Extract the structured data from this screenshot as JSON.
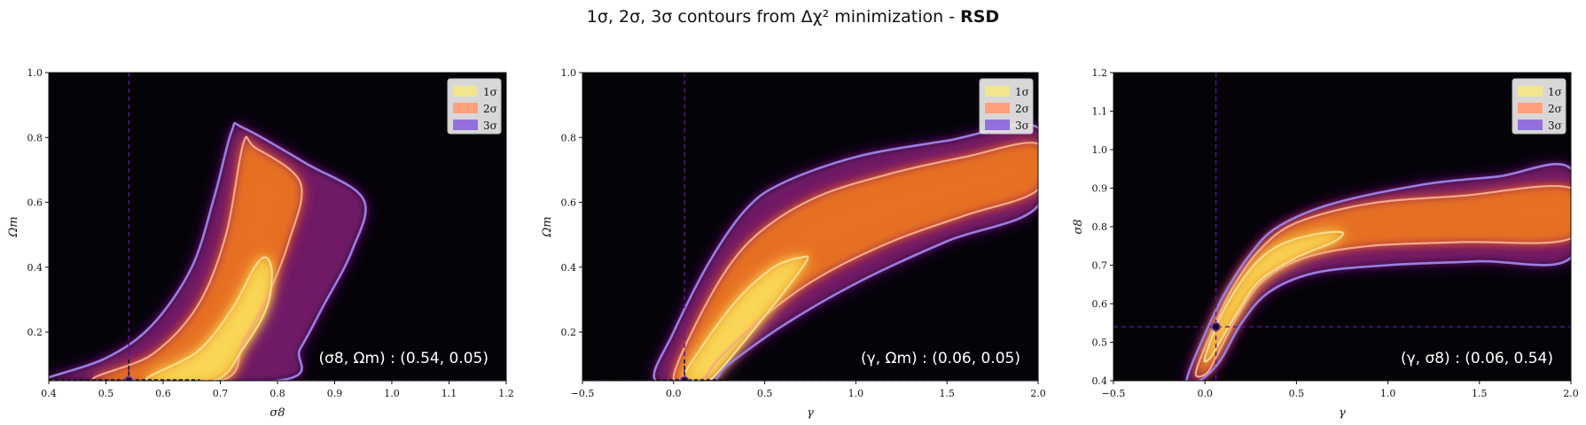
{
  "title": {
    "prefix": "1σ, 2σ, 3σ contours from Δχ² minimization - ",
    "bold": "RSD"
  },
  "legend": [
    {
      "label": "1σ",
      "color": "#f0e68c"
    },
    {
      "label": "2σ",
      "color": "#ffa07a"
    },
    {
      "label": "3σ",
      "color": "#9370db"
    }
  ],
  "colors": {
    "background": "#050308",
    "c1": "#f4dc8a",
    "c2": "#f4a989",
    "c3": "#9a7ee0",
    "crosshair": "#5a1a8c"
  },
  "chart_data": [
    {
      "type": "heatmap",
      "xlabel": "σ8",
      "ylabel": "Ωm",
      "xlim": [
        0.4,
        1.2
      ],
      "ylim": [
        0.05,
        1.0
      ],
      "xticks": [
        "0.4",
        "0.5",
        "0.6",
        "0.7",
        "0.8",
        "0.9",
        "1.0",
        "1.1",
        "1.2"
      ],
      "yticks": [
        "0.2",
        "0.4",
        "0.6",
        "0.8",
        "1.0"
      ],
      "best_fit": {
        "x": 0.54,
        "y": 0.05
      },
      "annotation": "(σ8, Ωm) : (0.54, 0.05)",
      "legend_position": "top-right",
      "contours": {
        "3": [
          [
            0.4,
            0.05
          ],
          [
            0.4,
            0.06
          ],
          [
            0.5,
            0.12
          ],
          [
            0.58,
            0.22
          ],
          [
            0.65,
            0.4
          ],
          [
            0.69,
            0.62
          ],
          [
            0.72,
            0.82
          ],
          [
            0.74,
            0.83
          ],
          [
            0.85,
            0.72
          ],
          [
            0.95,
            0.61
          ],
          [
            0.93,
            0.45
          ],
          [
            0.88,
            0.28
          ],
          [
            0.84,
            0.15
          ],
          [
            0.8,
            0.05
          ]
        ],
        "2": [
          [
            0.48,
            0.05
          ],
          [
            0.58,
            0.13
          ],
          [
            0.66,
            0.28
          ],
          [
            0.71,
            0.5
          ],
          [
            0.74,
            0.78
          ],
          [
            0.76,
            0.77
          ],
          [
            0.84,
            0.66
          ],
          [
            0.82,
            0.48
          ],
          [
            0.78,
            0.3
          ],
          [
            0.74,
            0.17
          ],
          [
            0.7,
            0.05
          ]
        ],
        "1": [
          [
            0.57,
            0.05
          ],
          [
            0.66,
            0.14
          ],
          [
            0.72,
            0.27
          ],
          [
            0.76,
            0.4
          ],
          [
            0.78,
            0.43
          ],
          [
            0.79,
            0.38
          ],
          [
            0.78,
            0.27
          ],
          [
            0.74,
            0.15
          ],
          [
            0.69,
            0.05
          ]
        ]
      }
    },
    {
      "type": "heatmap",
      "xlabel": "γ",
      "ylabel": "Ωm",
      "xlim": [
        -0.5,
        2.0
      ],
      "ylim": [
        0.05,
        1.0
      ],
      "xticks": [
        "−0.5",
        "0.0",
        "0.5",
        "1.0",
        "1.5",
        "2.0"
      ],
      "yticks": [
        "0.2",
        "0.4",
        "0.6",
        "0.8",
        "1.0"
      ],
      "best_fit": {
        "x": 0.06,
        "y": 0.05
      },
      "annotation": "(γ, Ωm) : (0.06, 0.05)",
      "legend_position": "top-right",
      "contours": {
        "3": [
          [
            -0.1,
            0.05
          ],
          [
            0.0,
            0.2
          ],
          [
            0.2,
            0.42
          ],
          [
            0.4,
            0.58
          ],
          [
            0.6,
            0.66
          ],
          [
            1.0,
            0.74
          ],
          [
            1.5,
            0.79
          ],
          [
            2.0,
            0.83
          ],
          [
            2.0,
            0.59
          ],
          [
            1.5,
            0.48
          ],
          [
            1.0,
            0.35
          ],
          [
            0.6,
            0.22
          ],
          [
            0.3,
            0.1
          ],
          [
            0.2,
            0.05
          ]
        ],
        "2": [
          [
            0.0,
            0.05
          ],
          [
            0.1,
            0.2
          ],
          [
            0.3,
            0.4
          ],
          [
            0.5,
            0.52
          ],
          [
            0.8,
            0.62
          ],
          [
            1.2,
            0.69
          ],
          [
            1.6,
            0.74
          ],
          [
            2.0,
            0.78
          ],
          [
            2.0,
            0.64
          ],
          [
            1.6,
            0.56
          ],
          [
            1.2,
            0.48
          ],
          [
            0.8,
            0.37
          ],
          [
            0.5,
            0.25
          ],
          [
            0.25,
            0.12
          ],
          [
            0.15,
            0.05
          ]
        ],
        "1": [
          [
            0.05,
            0.05
          ],
          [
            0.15,
            0.15
          ],
          [
            0.35,
            0.3
          ],
          [
            0.55,
            0.4
          ],
          [
            0.7,
            0.43
          ],
          [
            0.73,
            0.42
          ],
          [
            0.6,
            0.32
          ],
          [
            0.4,
            0.18
          ],
          [
            0.25,
            0.08
          ],
          [
            0.18,
            0.05
          ]
        ]
      }
    },
    {
      "type": "heatmap",
      "xlabel": "γ",
      "ylabel": "σ8",
      "xlim": [
        -0.5,
        2.0
      ],
      "ylim": [
        0.4,
        1.2
      ],
      "xticks": [
        "−0.5",
        "0.0",
        "0.5",
        "1.0",
        "1.5",
        "2.0"
      ],
      "yticks": [
        "0.4",
        "0.5",
        "0.6",
        "0.7",
        "0.8",
        "0.9",
        "1.0",
        "1.1",
        "1.2"
      ],
      "best_fit": {
        "x": 0.06,
        "y": 0.54
      },
      "annotation": "(γ, σ8) : (0.06, 0.54)",
      "legend_position": "top-right",
      "contours": {
        "3": [
          [
            -0.1,
            0.4
          ],
          [
            -0.02,
            0.5
          ],
          [
            0.1,
            0.62
          ],
          [
            0.25,
            0.73
          ],
          [
            0.4,
            0.8
          ],
          [
            0.7,
            0.86
          ],
          [
            1.2,
            0.91
          ],
          [
            1.6,
            0.93
          ],
          [
            2.0,
            0.95
          ],
          [
            2.0,
            0.72
          ],
          [
            1.5,
            0.71
          ],
          [
            1.0,
            0.7
          ],
          [
            0.6,
            0.68
          ],
          [
            0.35,
            0.63
          ],
          [
            0.2,
            0.55
          ],
          [
            0.08,
            0.45
          ],
          [
            -0.03,
            0.4
          ]
        ],
        "2": [
          [
            -0.05,
            0.42
          ],
          [
            0.03,
            0.52
          ],
          [
            0.15,
            0.64
          ],
          [
            0.3,
            0.74
          ],
          [
            0.5,
            0.81
          ],
          [
            0.9,
            0.86
          ],
          [
            1.4,
            0.88
          ],
          [
            2.0,
            0.9
          ],
          [
            2.0,
            0.77
          ],
          [
            1.4,
            0.76
          ],
          [
            0.9,
            0.75
          ],
          [
            0.55,
            0.72
          ],
          [
            0.32,
            0.66
          ],
          [
            0.18,
            0.57
          ],
          [
            0.07,
            0.47
          ],
          [
            0.01,
            0.42
          ]
        ],
        "1": [
          [
            0.0,
            0.46
          ],
          [
            0.1,
            0.58
          ],
          [
            0.25,
            0.69
          ],
          [
            0.4,
            0.75
          ],
          [
            0.6,
            0.78
          ],
          [
            0.75,
            0.785
          ],
          [
            0.7,
            0.76
          ],
          [
            0.5,
            0.72
          ],
          [
            0.3,
            0.66
          ],
          [
            0.18,
            0.58
          ],
          [
            0.08,
            0.5
          ],
          [
            0.03,
            0.46
          ]
        ]
      }
    }
  ]
}
